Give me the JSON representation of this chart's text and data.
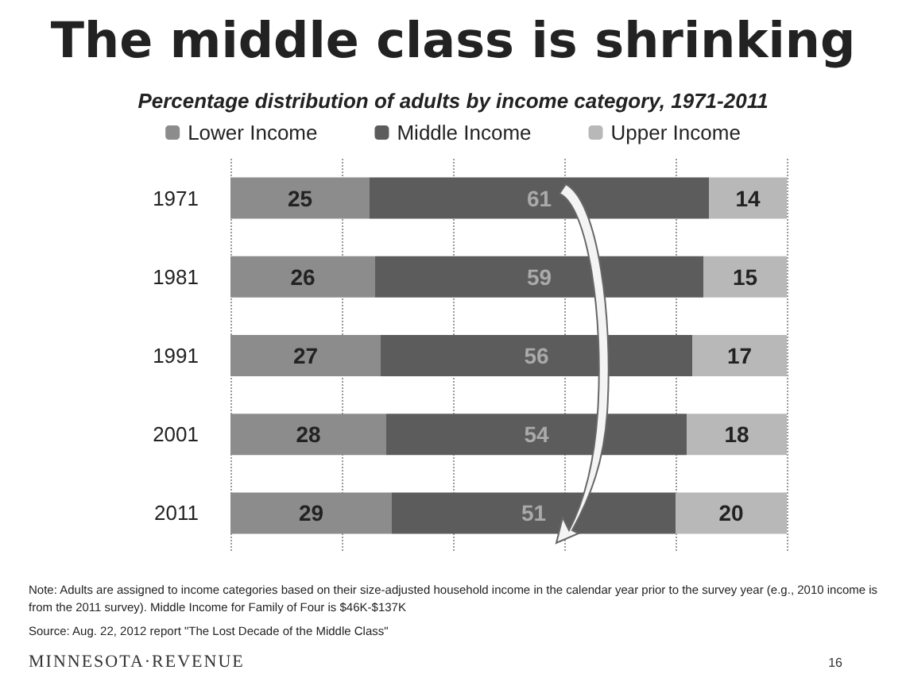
{
  "chart_data": {
    "type": "bar",
    "orientation": "horizontal",
    "stacked": true,
    "title": "The middle class is shrinking",
    "subtitle": "Percentage distribution of adults by income category, 1971-2011",
    "categories": [
      "1971",
      "1981",
      "1991",
      "2001",
      "2011"
    ],
    "series": [
      {
        "name": "Lower Income",
        "color": "#8c8c8c",
        "values": [
          25,
          26,
          27,
          28,
          29
        ]
      },
      {
        "name": "Middle Income",
        "color": "#5c5c5c",
        "values": [
          61,
          59,
          56,
          54,
          51
        ]
      },
      {
        "name": "Upper Income",
        "color": "#b8b8b8",
        "values": [
          14,
          15,
          17,
          18,
          20
        ]
      }
    ],
    "xlim": [
      0,
      100
    ],
    "tick_labels": "y",
    "grid": "x",
    "legend": "top",
    "data_labels": true,
    "annotations": [
      "Note: Adults are assigned to income categories based on their size-adjusted household income in the calendar year prior to the survey year (e.g., 2010 income is from the 2011 survey).  Middle Income for Family of Four is $46K-$137K",
      "Source: Aug. 22, 2012 report \"The Lost Decade of the Middle Class\"",
      "MINNESOTA·REVENUE",
      "16"
    ]
  }
}
